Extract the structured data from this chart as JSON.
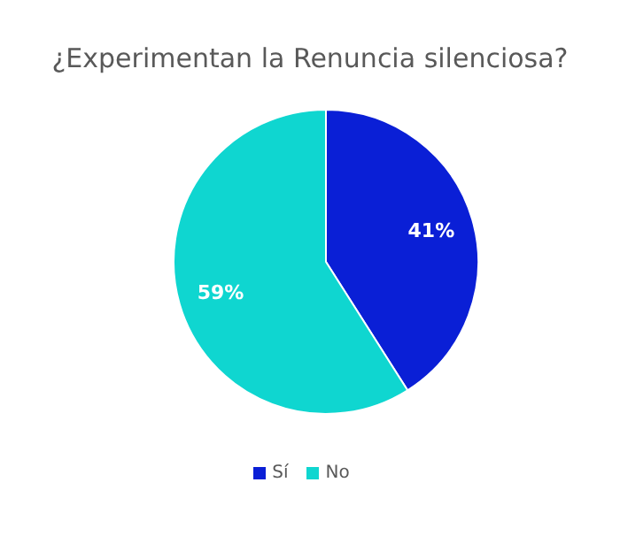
{
  "chart_data": {
    "type": "pie",
    "title": "¿Experimentan la Renuncia silenciosa?",
    "categories": [
      "Sí",
      "No"
    ],
    "values": [
      41,
      59
    ],
    "colors": [
      "#0a1fd6",
      "#0fd6d0"
    ],
    "value_labels": [
      "41%",
      "59%"
    ],
    "legend": "bottom"
  }
}
